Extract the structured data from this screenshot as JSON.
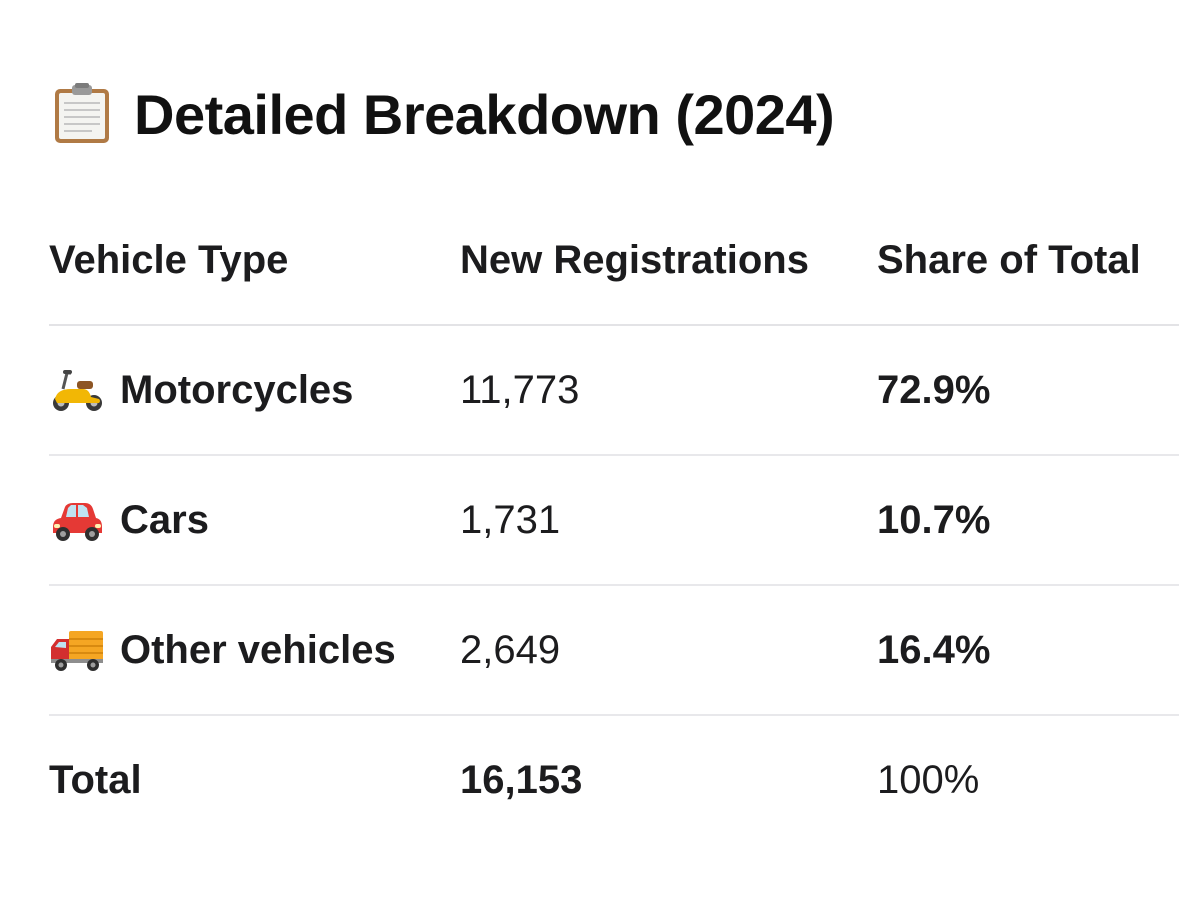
{
  "heading": {
    "icon": "clipboard-icon",
    "title": "Detailed Breakdown (2024)"
  },
  "table": {
    "columns": [
      "Vehicle Type",
      "New Registrations",
      "Share of Total"
    ],
    "rows": [
      {
        "icon": "scooter-icon",
        "type": "Motorcycles",
        "registrations": "11,773",
        "share": "72.9%"
      },
      {
        "icon": "car-icon",
        "type": "Cars",
        "registrations": "1,731",
        "share": "10.7%"
      },
      {
        "icon": "delivery-truck-icon",
        "type": "Other vehicles",
        "registrations": "2,649",
        "share": "16.4%"
      }
    ],
    "total": {
      "label": "Total",
      "registrations": "16,153",
      "share": "100%"
    }
  },
  "colors": {
    "text": "#1c1c1e",
    "divider": "#e5e5e8",
    "scooter": "#f2b705",
    "car": "#e53935",
    "truck_cab": "#d32f2f",
    "truck_box": "#f5a623"
  }
}
